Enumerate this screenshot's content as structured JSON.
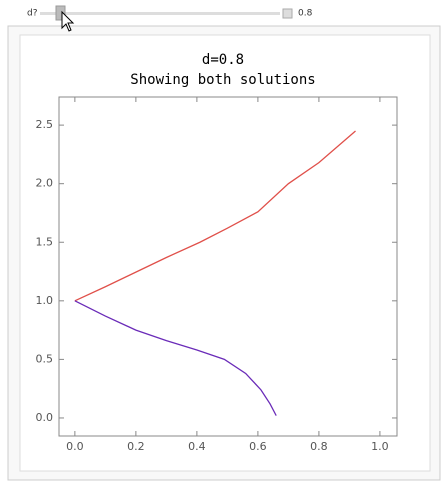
{
  "controls": {
    "slider_label": "d?",
    "slider_value": "0.8"
  },
  "chart_data": {
    "type": "line",
    "title": "d=0.8",
    "subtitle": "Showing both solutions",
    "series": [
      {
        "color": "#e0504a",
        "x": [
          0,
          0.1,
          0.2,
          0.3,
          0.41,
          0.5,
          0.6,
          0.7,
          0.8,
          0.92
        ],
        "values": [
          1,
          1.12,
          1.245,
          1.37,
          1.5,
          1.62,
          1.76,
          2.0,
          2.18,
          2.45
        ]
      },
      {
        "color": "#6a2bb8",
        "x": [
          0,
          0.1,
          0.2,
          0.3,
          0.4,
          0.49,
          0.56,
          0.61,
          0.64,
          0.66
        ],
        "values": [
          1,
          0.87,
          0.75,
          0.66,
          0.58,
          0.5,
          0.38,
          0.24,
          0.12,
          0.02
        ]
      }
    ],
    "xlim": [
      -0.052,
      1.056
    ],
    "ylim": [
      -0.154,
      2.74
    ],
    "xticks": [
      {
        "value": 0,
        "label": "0.0"
      },
      0.2,
      0.4,
      0.6,
      0.8,
      {
        "value": 1,
        "label": "1.0"
      }
    ],
    "yticks": [
      {
        "value": 0,
        "label": "0.0"
      },
      0.5,
      {
        "value": 1,
        "label": "1.0"
      },
      1.5,
      {
        "value": 2,
        "label": "2.0"
      },
      2.5
    ]
  }
}
